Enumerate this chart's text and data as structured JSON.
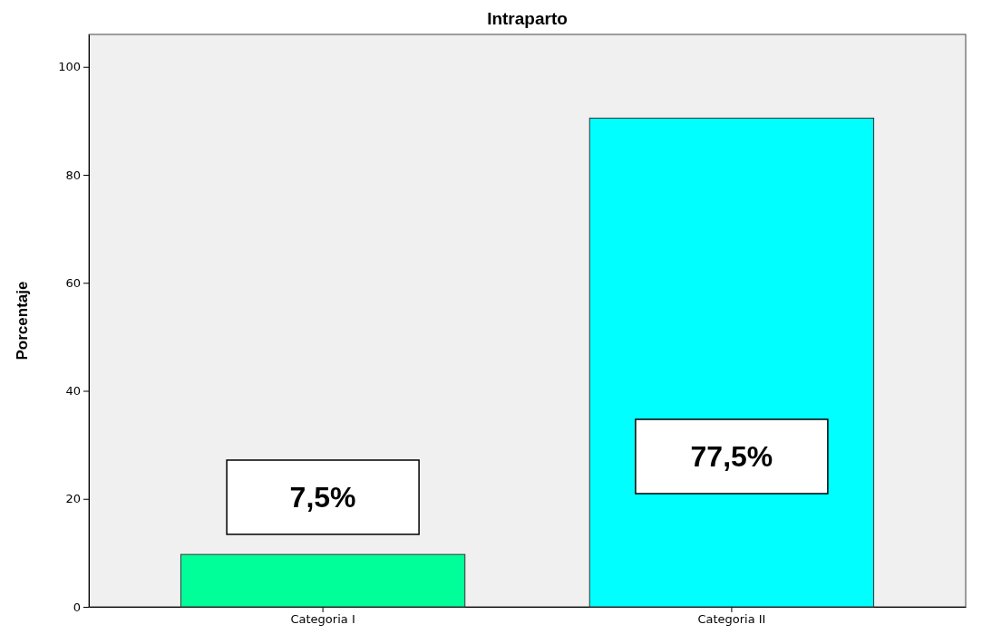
{
  "chart_data": {
    "type": "bar",
    "title": "Intraparto",
    "ylabel": "Porcentaje",
    "categories": [
      "Categoria I",
      "Categoria II"
    ],
    "values": [
      9.7,
      90.5
    ],
    "colors": [
      "#00ff99",
      "#00ffff"
    ],
    "ylim": [
      0,
      106
    ],
    "yticks": [
      0,
      20,
      40,
      60,
      80,
      100
    ],
    "grid": false,
    "annotations": [
      "7,5%",
      "77,5%"
    ]
  }
}
